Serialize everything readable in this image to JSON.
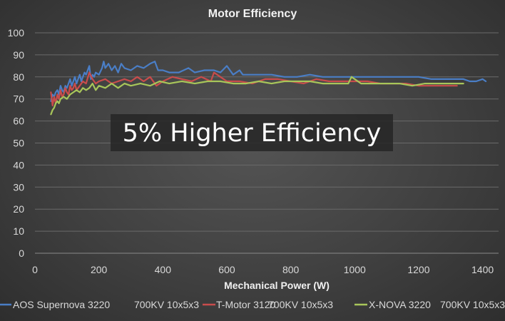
{
  "chart_data": {
    "type": "line",
    "title": "Motor Efficiency",
    "xlabel": "Mechanical Power (W)",
    "ylabel": "",
    "xlim": [
      0,
      1450
    ],
    "ylim": [
      0,
      100
    ],
    "xticks": [
      0,
      200,
      400,
      600,
      800,
      1000,
      1200,
      1400
    ],
    "yticks": [
      0,
      10,
      20,
      30,
      40,
      50,
      60,
      70,
      80,
      90,
      100
    ],
    "grid": "horizontal",
    "legend_position": "bottom",
    "annotation": "5% Higher Efficiency",
    "series": [
      {
        "name": "AOS Supernova 3220   700KV 10x5x3",
        "legend_parts": [
          "AOS Supernova 3220",
          "700KV 10x5x3"
        ],
        "color": "#4a7ec6",
        "x": [
          50,
          55,
          60,
          65,
          70,
          75,
          80,
          85,
          90,
          95,
          100,
          105,
          110,
          115,
          120,
          125,
          130,
          135,
          140,
          145,
          150,
          155,
          160,
          165,
          170,
          175,
          180,
          185,
          190,
          200,
          210,
          215,
          220,
          230,
          240,
          250,
          260,
          270,
          280,
          300,
          320,
          340,
          360,
          375,
          385,
          400,
          420,
          450,
          480,
          500,
          530,
          560,
          580,
          600,
          620,
          640,
          650,
          680,
          700,
          740,
          780,
          820,
          860,
          900,
          940,
          980,
          1020,
          1060,
          1100,
          1150,
          1200,
          1240,
          1280,
          1320,
          1340,
          1360,
          1380,
          1400,
          1410
        ],
        "y": [
          69,
          72,
          71,
          73,
          74,
          72,
          76,
          74,
          73,
          76,
          75,
          77,
          79,
          76,
          78,
          80,
          77,
          79,
          81,
          78,
          80,
          82,
          81,
          83,
          85,
          79,
          81,
          80,
          82,
          81,
          84,
          87,
          84,
          86,
          83,
          85,
          82,
          86,
          84,
          83,
          85,
          84,
          86,
          87,
          83,
          83,
          82,
          82,
          84,
          82,
          83,
          83,
          82,
          85,
          81,
          83,
          81,
          81,
          81,
          81,
          80,
          80,
          81,
          80,
          80,
          80,
          80,
          80,
          80,
          80,
          80,
          79,
          79,
          79,
          79,
          78,
          78,
          79,
          78
        ]
      },
      {
        "name": "T-Motor 3120 700KV 10x5x3",
        "legend_parts": [
          "T-Motor 3120",
          "700KV 10x5x3"
        ],
        "color": "#c94c4c",
        "x": [
          50,
          55,
          60,
          65,
          70,
          75,
          80,
          85,
          90,
          95,
          100,
          105,
          110,
          115,
          120,
          125,
          130,
          140,
          150,
          160,
          170,
          180,
          190,
          200,
          220,
          240,
          260,
          280,
          300,
          320,
          340,
          360,
          380,
          400,
          430,
          460,
          490,
          520,
          550,
          560,
          580,
          600,
          640,
          680,
          720,
          760,
          800,
          840,
          880,
          920,
          960,
          1000,
          1040,
          1080,
          1120,
          1160,
          1200,
          1240,
          1280,
          1300,
          1320
        ],
        "y": [
          73,
          67,
          71,
          68,
          72,
          70,
          74,
          71,
          72,
          75,
          73,
          72,
          76,
          74,
          75,
          77,
          74,
          76,
          78,
          77,
          82,
          79,
          77,
          78,
          79,
          77,
          78,
          79,
          78,
          80,
          78,
          80,
          76,
          78,
          80,
          79,
          78,
          80,
          78,
          82,
          80,
          78,
          78,
          77,
          79,
          79,
          78,
          77,
          79,
          78,
          78,
          78,
          78,
          77,
          77,
          77,
          76,
          76,
          76,
          76,
          76
        ]
      },
      {
        "name": "X-NOVA 3220 700KV 10x5x3",
        "legend_parts": [
          "X-NOVA 3220",
          "700KV 10x5x3"
        ],
        "color": "#a8c65a",
        "x": [
          50,
          55,
          60,
          65,
          70,
          75,
          80,
          90,
          100,
          110,
          120,
          130,
          140,
          150,
          160,
          170,
          180,
          190,
          200,
          220,
          240,
          260,
          280,
          300,
          330,
          360,
          390,
          420,
          460,
          500,
          540,
          580,
          620,
          660,
          700,
          740,
          780,
          820,
          860,
          900,
          940,
          980,
          990,
          1020,
          1060,
          1100,
          1140,
          1180,
          1220,
          1260,
          1300,
          1330,
          1340
        ],
        "y": [
          63,
          65,
          66,
          68,
          69,
          68,
          70,
          71,
          70,
          72,
          73,
          74,
          73,
          75,
          74,
          75,
          77,
          74,
          76,
          75,
          77,
          75,
          77,
          76,
          77,
          76,
          78,
          77,
          78,
          77,
          78,
          78,
          77,
          77,
          78,
          77,
          78,
          78,
          78,
          77,
          77,
          77,
          80,
          77,
          77,
          77,
          77,
          76,
          77,
          77,
          77,
          77,
          77
        ]
      }
    ]
  }
}
